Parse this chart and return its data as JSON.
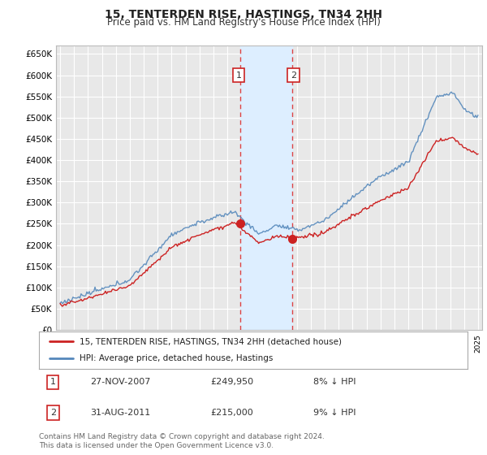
{
  "title": "15, TENTERDEN RISE, HASTINGS, TN34 2HH",
  "subtitle": "Price paid vs. HM Land Registry's House Price Index (HPI)",
  "ylim": [
    0,
    670000
  ],
  "yticks": [
    0,
    50000,
    100000,
    150000,
    200000,
    250000,
    300000,
    350000,
    400000,
    450000,
    500000,
    550000,
    600000,
    650000
  ],
  "ytick_labels": [
    "£0",
    "£50K",
    "£100K",
    "£150K",
    "£200K",
    "£250K",
    "£300K",
    "£350K",
    "£400K",
    "£450K",
    "£500K",
    "£550K",
    "£600K",
    "£650K"
  ],
  "background_color": "#ffffff",
  "plot_bg_color": "#e8e8e8",
  "grid_color": "#ffffff",
  "hpi_color": "#5588bb",
  "price_color": "#cc2222",
  "sale1_date": 2007.92,
  "sale1_price": 249950,
  "sale1_label": "1",
  "sale2_date": 2011.67,
  "sale2_price": 215000,
  "sale2_label": "2",
  "shade_color": "#ddeeff",
  "dashed_color": "#dd4444",
  "legend1_label": "15, TENTERDEN RISE, HASTINGS, TN34 2HH (detached house)",
  "legend2_label": "HPI: Average price, detached house, Hastings",
  "table_row1": [
    "1",
    "27-NOV-2007",
    "£249,950",
    "8% ↓ HPI"
  ],
  "table_row2": [
    "2",
    "31-AUG-2011",
    "£215,000",
    "9% ↓ HPI"
  ],
  "footer": "Contains HM Land Registry data © Crown copyright and database right 2024.\nThis data is licensed under the Open Government Licence v3.0.",
  "title_fontsize": 10,
  "subtitle_fontsize": 8.5,
  "tick_fontsize": 7.5
}
